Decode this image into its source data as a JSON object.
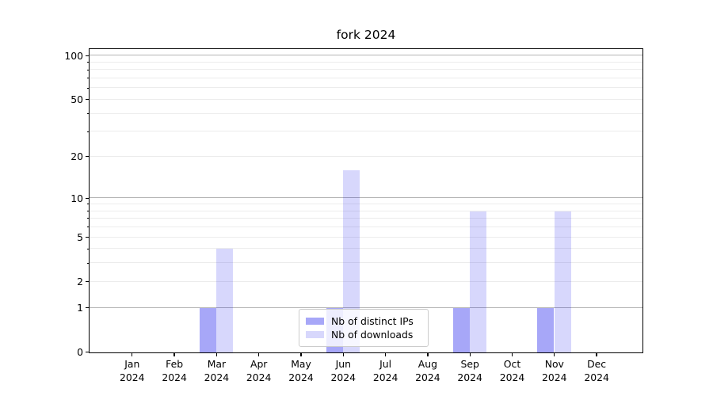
{
  "chart_data": {
    "type": "bar",
    "title": "fork 2024",
    "categories": [
      "Jan 2024",
      "Feb 2024",
      "Mar 2024",
      "Apr 2024",
      "May 2024",
      "Jun 2024",
      "Jul 2024",
      "Aug 2024",
      "Sep 2024",
      "Oct 2024",
      "Nov 2024",
      "Dec 2024"
    ],
    "series": [
      {
        "name": "Nb of distinct IPs",
        "values": [
          0,
          0,
          1,
          0,
          0,
          1,
          0,
          0,
          1,
          0,
          1,
          0
        ],
        "color": "rgba(0,0,235,0.345)"
      },
      {
        "name": "Nb of downloads",
        "values": [
          0,
          0,
          4,
          0,
          0,
          16,
          0,
          0,
          8,
          0,
          8,
          0
        ],
        "color": "rgba(0,0,235,0.155)"
      }
    ],
    "xlabel": "",
    "ylabel": "",
    "ylim": [
      0,
      100
    ],
    "yscale": "log10(value+1)",
    "yticks": [
      0,
      1,
      2,
      5,
      10,
      20,
      50,
      100
    ],
    "minor_yticks": [
      3,
      4,
      6,
      7,
      8,
      9,
      30,
      40,
      60,
      70,
      80,
      90
    ],
    "major_gridlines": [
      1,
      10,
      100
    ],
    "minor_gridlines": [
      2,
      3,
      4,
      5,
      6,
      7,
      8,
      9,
      20,
      30,
      40,
      50,
      60,
      70,
      80,
      90
    ],
    "grid": true,
    "legend_position": "lower center",
    "colors": {
      "major_grid": "#b4b4b4",
      "minor_grid": "#ececec",
      "axis": "#000000",
      "background": "#ffffff"
    }
  }
}
